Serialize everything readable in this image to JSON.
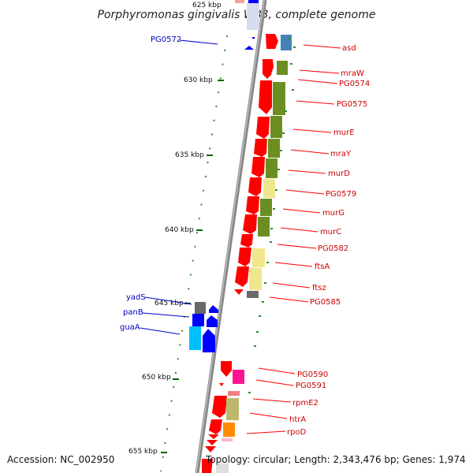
{
  "title": "Porphyromonas gingivalis W83, complete genome",
  "footer": {
    "accession": "Accession: NC_002950",
    "topology": "Topology: circular; Length: 2,343,476 bp; Genes: 1,974"
  },
  "ticks": [
    "625 kbp",
    "630 kbp",
    "635 kbp",
    "640 kbp",
    "645 kbp",
    "650 kbp",
    "655 kbp"
  ],
  "genes_forward": [
    "asd",
    "mraW",
    "PG0574",
    "PG0575",
    "murE",
    "mraY",
    "murD",
    "PG0579",
    "murG",
    "murC",
    "PG0582",
    "ftsA",
    "ftsz",
    "PG0585",
    "PG0590",
    "PG0591",
    "rpmE2",
    "htrA",
    "rpoD"
  ],
  "genes_reverse": [
    "PG0572",
    "yadS",
    "panB",
    "guaA"
  ],
  "colors": {
    "forward_gene": "#ff0000",
    "reverse_gene": "#0000ff",
    "cog_green": "#6b8e23",
    "cog_yellow": "#f0e68c",
    "cog_steel": "#4682b4",
    "cog_cyan": "#00bfff",
    "cog_magenta": "#ff1493",
    "cog_orange": "#ff8c00",
    "cog_khaki": "#bdb76b",
    "backbone": "#888888",
    "tick": "#006400"
  }
}
